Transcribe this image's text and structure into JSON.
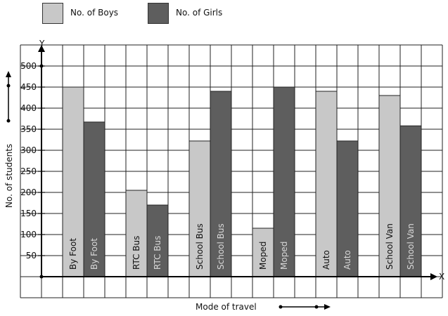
{
  "chart_data": {
    "type": "bar",
    "categories": [
      "By Foot",
      "RTC Bus",
      "School Bus",
      "Moped",
      "Auto",
      "School Van"
    ],
    "series": [
      {
        "name": "No. of Boys",
        "color": "#c8c8c8",
        "values": [
          450,
          205,
          322,
          115,
          440,
          430
        ]
      },
      {
        "name": "No. of Girls",
        "color": "#5e5e5e",
        "values": [
          367,
          170,
          440,
          450,
          322,
          358
        ]
      }
    ],
    "xlabel": "Mode of travel",
    "ylabel": "No. of students",
    "x_axis_letter": "X",
    "y_axis_letter": "Y",
    "yticks": [
      50,
      100,
      150,
      200,
      250,
      300,
      350,
      400,
      450,
      500
    ],
    "ytick_labels": [
      "50",
      "100",
      "150",
      "200",
      "250",
      "300",
      "350",
      "400",
      "450",
      "500"
    ],
    "ylim": [
      0,
      500
    ],
    "grid": true,
    "legend_position": "top-left"
  }
}
